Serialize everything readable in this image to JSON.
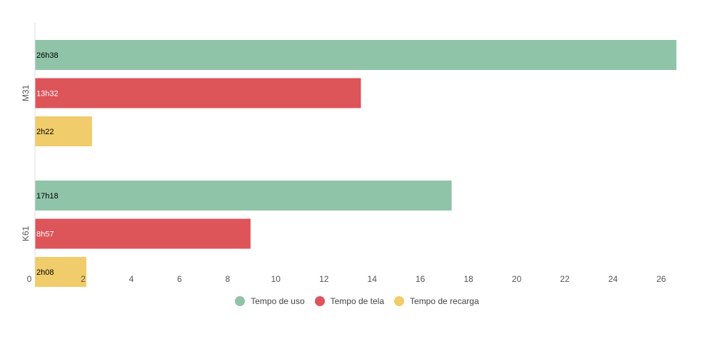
{
  "chart_data": {
    "type": "bar",
    "orientation": "horizontal",
    "title": "",
    "xlabel": "",
    "ylabel": "",
    "categories": [
      "M31",
      "K61"
    ],
    "series": [
      {
        "name": "Tempo de uso",
        "color": "#8fc4a8",
        "label_color": "#000000",
        "values": [
          26.633,
          17.3
        ],
        "labels": [
          "26h38",
          "17h18"
        ]
      },
      {
        "name": "Tempo de tela",
        "color": "#dd5459",
        "label_color": "#ffffff",
        "values": [
          13.533,
          8.95
        ],
        "labels": [
          "13h32",
          "8h57"
        ]
      },
      {
        "name": "Tempo de recarga",
        "color": "#f0cc6a",
        "label_color": "#000000",
        "values": [
          2.367,
          2.133
        ],
        "labels": [
          "2h22",
          "2h08"
        ]
      }
    ],
    "xlim": [
      0,
      26
    ],
    "xticks": [
      0,
      2,
      4,
      6,
      8,
      10,
      12,
      14,
      16,
      18,
      20,
      22,
      24,
      26
    ],
    "grid": false,
    "legend": "bottom-center"
  }
}
